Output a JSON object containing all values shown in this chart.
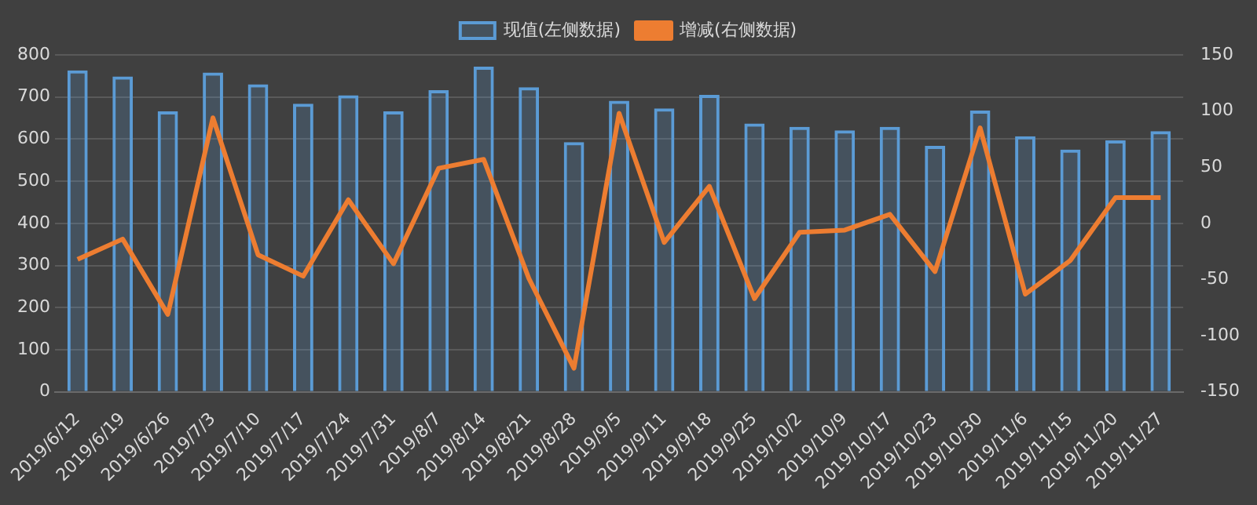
{
  "chart_data": {
    "type": "bar",
    "categories": [
      "2019/6/12",
      "2019/6/19",
      "2019/6/26",
      "2019/7/3",
      "2019/7/10",
      "2019/7/17",
      "2019/7/24",
      "2019/7/31",
      "2019/8/7",
      "2019/8/14",
      "2019/8/21",
      "2019/8/28",
      "2019/9/5",
      "2019/9/11",
      "2019/9/18",
      "2019/9/25",
      "2019/10/2",
      "2019/10/9",
      "2019/10/17",
      "2019/10/23",
      "2019/10/30",
      "2019/11/6",
      "2019/11/15",
      "2019/11/20",
      "2019/11/27"
    ],
    "series": [
      {
        "name": "现值(左侧数据)",
        "color": "#5b9bd5",
        "values": [
          763,
          749,
          666,
          758,
          730,
          684,
          704,
          666,
          716,
          772,
          723,
          593,
          691,
          673,
          705,
          637,
          629,
          621,
          629,
          584,
          668,
          607,
          575,
          597,
          619
        ]
      },
      {
        "name": "增减(右侧数据)",
        "type": "line",
        "axis": "y2",
        "color": "#ed7d31",
        "values": [
          -32,
          -14,
          -81,
          94,
          -28,
          -47,
          21,
          -36,
          49,
          57,
          -49,
          -129,
          98,
          -17,
          33,
          -67,
          -8,
          -6,
          8,
          -43,
          85,
          -63,
          -33,
          23,
          23
        ]
      }
    ],
    "ylim": [
      0,
      800
    ],
    "yticks": [
      0,
      100,
      200,
      300,
      400,
      500,
      600,
      700,
      800
    ],
    "y2lim": [
      -150,
      150
    ],
    "y2ticks": [
      -150,
      -100,
      -50,
      0,
      50,
      100,
      150
    ],
    "grid": "y",
    "legend": "top",
    "marker": "none"
  }
}
